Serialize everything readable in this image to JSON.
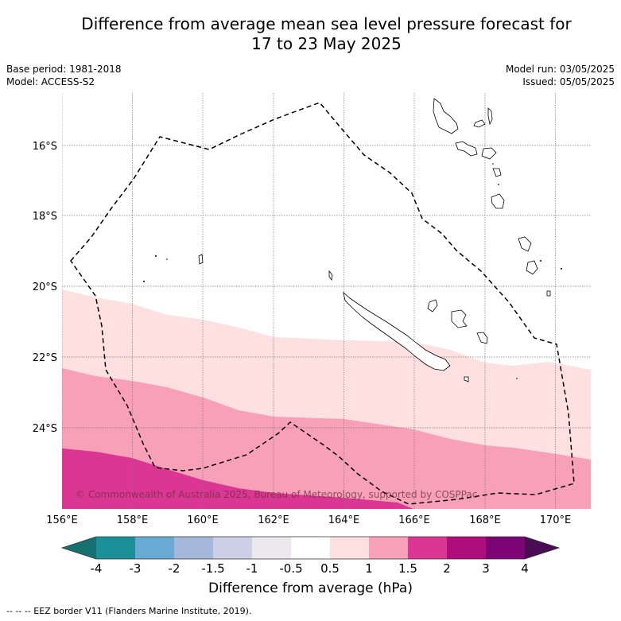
{
  "title": {
    "line1": "Difference from average mean sea level pressure forecast for",
    "line2": "17 to 23 May 2025"
  },
  "meta": {
    "base_period": "Base period: 1981-2018",
    "model": "Model: ACCESS-S2",
    "model_run": "Model run: 03/05/2025",
    "issued": "Issued: 05/05/2025"
  },
  "map": {
    "lon_range": [
      156,
      171
    ],
    "lat_range": [
      -26.3,
      -14.7
    ],
    "lon_ticks": [
      "156°E",
      "158°E",
      "160°E",
      "162°E",
      "164°E",
      "166°E",
      "168°E",
      "170°E"
    ],
    "lat_ticks": [
      "16°S",
      "18°S",
      "20°S",
      "22°S",
      "24°S"
    ],
    "copyright": "© Commonwealth of Australia 2025, Bureau of Meteorology, supported by COSPPac",
    "bands": [
      {
        "category": "0.5 to 1",
        "color": "#fde0df"
      },
      {
        "category": "1 to 1.5",
        "color": "#f8a0b8"
      },
      {
        "category": "1.5 to 2",
        "color": "#dc3694"
      }
    ]
  },
  "colorbar": {
    "title": "Difference from average (hPa)",
    "labels": [
      "-4",
      "-3",
      "-2",
      "-1.5",
      "-1",
      "-0.5",
      "0.5",
      "1",
      "1.5",
      "2",
      "3",
      "4"
    ],
    "colors": [
      "#177070",
      "#1b9099",
      "#68aad3",
      "#a5b8dc",
      "#cdcfe6",
      "#ebe9ee",
      "#ffffff",
      "#fde0df",
      "#f8a0b8",
      "#dc3694",
      "#af0c7c",
      "#7c0475",
      "#4a0c55"
    ]
  },
  "footnote": "-- -- -- EEZ border V11 (Flanders Marine Institute, 2019)."
}
